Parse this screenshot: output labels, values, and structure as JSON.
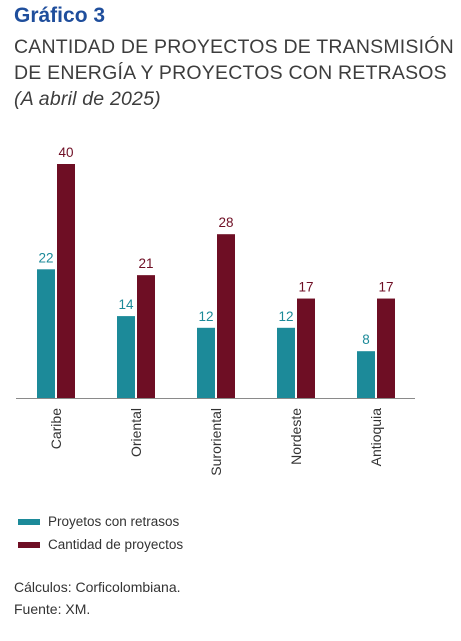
{
  "header": {
    "label": "Gráfico 3",
    "title": "CANTIDAD DE PROYECTOS DE TRANSMISIÓN DE ENERGÍA Y PROYECTOS CON RETRASOS",
    "subtitle": "(A abril de 2025)"
  },
  "chart_data": {
    "type": "bar",
    "categories": [
      "Caribe",
      "Oriental",
      "Suroriental",
      "Nordeste",
      "Antioquia"
    ],
    "series": [
      {
        "name": "Proyetos con retrasos",
        "values": [
          22,
          14,
          12,
          12,
          8
        ],
        "color": "#1c8a99"
      },
      {
        "name": "Cantidad de proyectos",
        "values": [
          40,
          21,
          28,
          17,
          17
        ],
        "color": "#6e0e24"
      }
    ],
    "ylim": [
      0,
      40
    ],
    "legend_position": "bottom-left",
    "grid": false
  },
  "footer": {
    "calc": "Cálculos: Corficolombiana.",
    "source": "Fuente: XM."
  }
}
